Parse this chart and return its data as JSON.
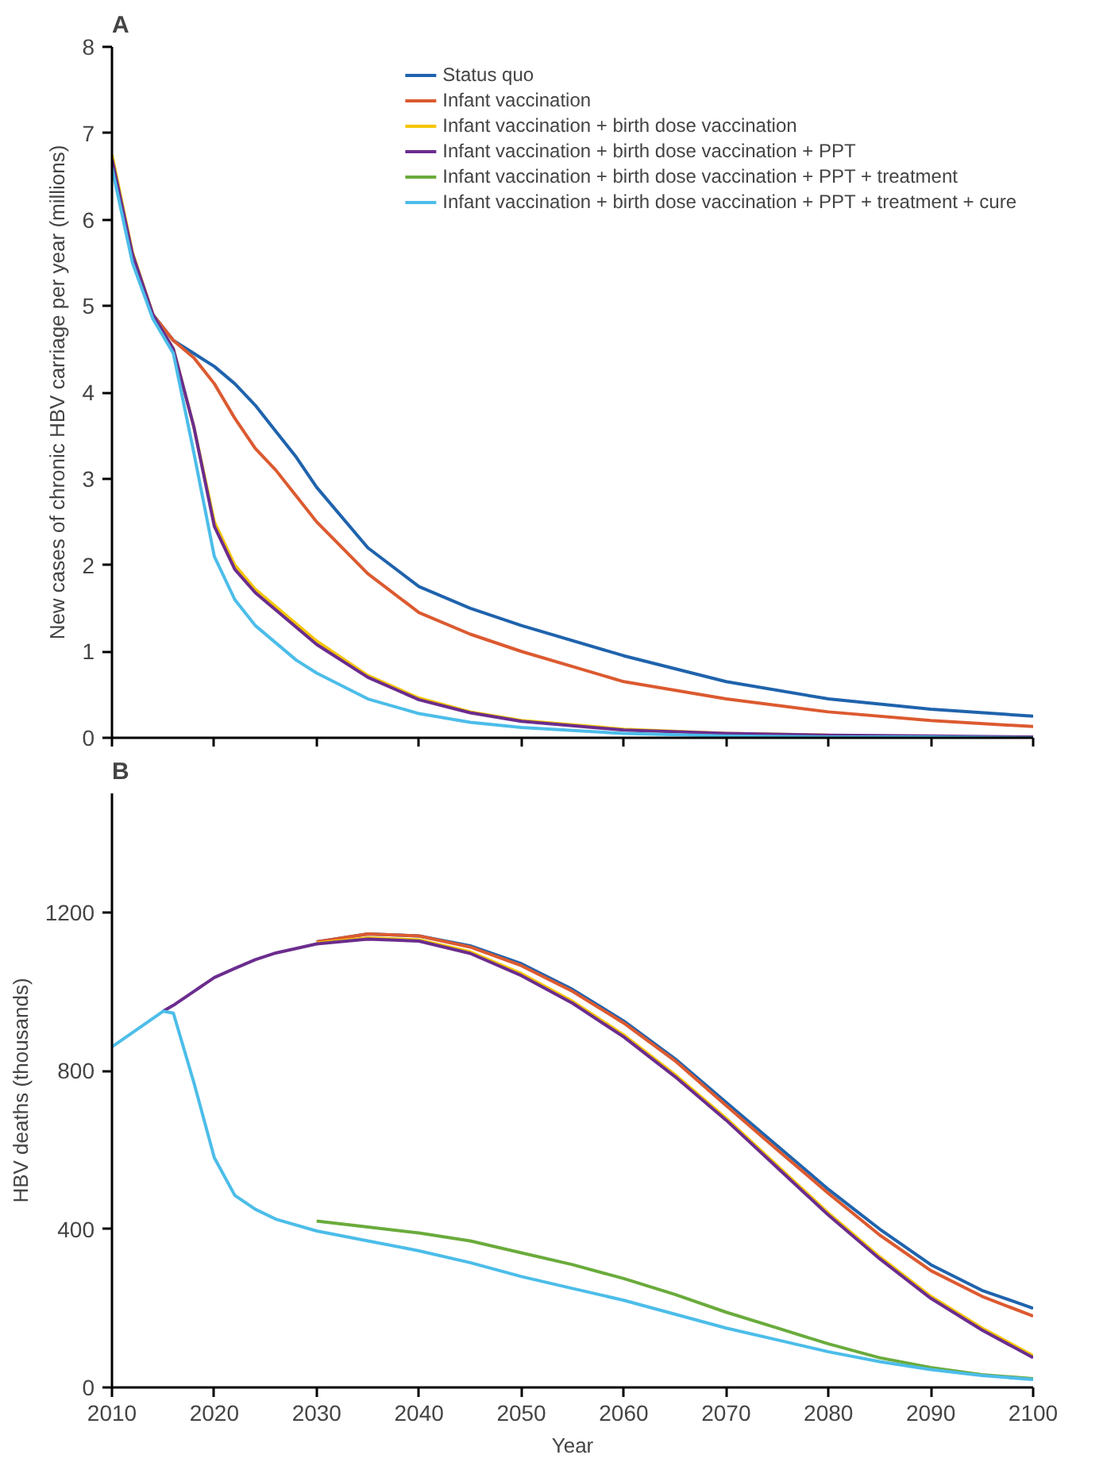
{
  "chart_data": [
    {
      "type": "line",
      "title": "A",
      "ylabel": "New cases of chronic HBV carriage per year (millions)",
      "x": [
        2010,
        2012,
        2014,
        2016,
        2018,
        2020,
        2022,
        2024,
        2026,
        2028,
        2030,
        2035,
        2040,
        2045,
        2050,
        2060,
        2070,
        2080,
        2090,
        2100
      ],
      "xlim": [
        2010,
        2100
      ],
      "xticks": [
        {
          "value": 2010,
          "label": null
        },
        {
          "value": 2020,
          "label": null
        },
        {
          "value": 2030,
          "label": null
        },
        {
          "value": 2040,
          "label": null
        },
        {
          "value": 2050,
          "label": null
        },
        {
          "value": 2060,
          "label": null
        },
        {
          "value": 2070,
          "label": null
        },
        {
          "value": 2080,
          "label": null
        },
        {
          "value": 2090,
          "label": null
        },
        {
          "value": 2100,
          "label": null
        }
      ],
      "ylim": [
        0,
        8
      ],
      "yticks": [
        0,
        1,
        2,
        3,
        4,
        5,
        6,
        7,
        8
      ],
      "tick_labels": "y",
      "grid": false,
      "legend": "top right",
      "series": [
        {
          "name": "Status quo",
          "color": "#1f63ad",
          "values": [
            6.7,
            5.6,
            4.9,
            4.6,
            4.45,
            4.3,
            4.1,
            3.85,
            3.55,
            3.25,
            2.9,
            2.2,
            1.75,
            1.5,
            1.3,
            0.95,
            0.65,
            0.45,
            0.33,
            0.25
          ]
        },
        {
          "name": "Infant vaccination",
          "color": "#dc5a30",
          "values": [
            6.7,
            5.6,
            4.9,
            4.6,
            4.4,
            4.1,
            3.7,
            3.35,
            3.1,
            2.8,
            2.5,
            1.9,
            1.45,
            1.2,
            1.0,
            0.65,
            0.45,
            0.3,
            0.2,
            0.13
          ]
        },
        {
          "name": "Infant vaccination + birth dose vaccination",
          "color": "#f5c500",
          "values": [
            6.75,
            5.62,
            4.9,
            4.5,
            3.6,
            2.5,
            2.0,
            1.72,
            1.52,
            1.32,
            1.12,
            0.72,
            0.46,
            0.3,
            0.2,
            0.1,
            0.05,
            0.03,
            null,
            null
          ]
        },
        {
          "name": "Infant vaccination + birth dose vaccination + PPT",
          "color": "#6b2d8e",
          "values": [
            6.7,
            5.6,
            4.9,
            4.5,
            3.6,
            2.45,
            1.95,
            1.68,
            1.48,
            1.28,
            1.08,
            0.7,
            0.44,
            0.29,
            0.19,
            0.09,
            0.05,
            0.03,
            0.02,
            0.01
          ]
        },
        {
          "name": "Infant vaccination + birth dose vaccination + PPT + treatment",
          "color": "#6aab3c",
          "values": [
            null,
            null,
            null,
            null,
            null,
            null,
            null,
            null,
            null,
            null,
            null,
            null,
            null,
            null,
            null,
            null,
            null,
            null,
            null,
            null
          ]
        },
        {
          "name": "Infant vaccination + birth dose vaccination + PPT + treatment + cure",
          "color": "#4cbde9",
          "values": [
            6.6,
            5.5,
            4.85,
            4.45,
            3.3,
            2.1,
            1.6,
            1.3,
            1.1,
            0.9,
            0.75,
            0.45,
            0.28,
            0.18,
            0.12,
            0.05,
            0.02,
            0.01,
            0.01,
            0.0
          ]
        }
      ]
    },
    {
      "type": "line",
      "title": "B",
      "xlabel": "Year",
      "ylabel": "HBV deaths (thousands)",
      "x": [
        2010,
        2015,
        2016,
        2018,
        2020,
        2022,
        2024,
        2026,
        2030,
        2035,
        2040,
        2045,
        2050,
        2055,
        2060,
        2065,
        2070,
        2075,
        2080,
        2085,
        2090,
        2095,
        2100
      ],
      "xlim": [
        2010,
        2100
      ],
      "xticks": [
        2010,
        2020,
        2030,
        2040,
        2050,
        2060,
        2070,
        2080,
        2090,
        2100
      ],
      "ylim": [
        0,
        1500
      ],
      "yticks": [
        0,
        400,
        800,
        1200
      ],
      "grid": false,
      "series": [
        {
          "color": "#1f63ad",
          "values": [
            null,
            null,
            null,
            null,
            null,
            null,
            null,
            null,
            1125,
            1145,
            1140,
            1115,
            1070,
            1005,
            925,
            830,
            720,
            610,
            500,
            400,
            310,
            245,
            200
          ]
        },
        {
          "color": "#dc5a30",
          "values": [
            null,
            null,
            null,
            null,
            null,
            null,
            null,
            null,
            1125,
            1145,
            1140,
            1112,
            1065,
            1000,
            920,
            825,
            712,
            600,
            490,
            385,
            295,
            230,
            180
          ]
        },
        {
          "color": "#f5c500",
          "values": [
            null,
            null,
            null,
            null,
            null,
            null,
            null,
            null,
            1122,
            1135,
            1130,
            1100,
            1045,
            975,
            890,
            790,
            680,
            560,
            440,
            330,
            230,
            150,
            80
          ]
        },
        {
          "color": "#6b2d8e",
          "values": [
            null,
            950,
            965,
            1000,
            1035,
            1058,
            1080,
            1097,
            1120,
            1132,
            1127,
            1096,
            1040,
            970,
            885,
            785,
            675,
            555,
            435,
            325,
            225,
            145,
            75
          ]
        },
        {
          "color": "#6aab3c",
          "values": [
            null,
            null,
            null,
            null,
            null,
            null,
            null,
            null,
            420,
            405,
            390,
            370,
            340,
            310,
            275,
            235,
            190,
            150,
            110,
            75,
            50,
            32,
            22
          ]
        },
        {
          "color": "#4cbde9",
          "values": [
            860,
            950,
            945,
            770,
            580,
            485,
            450,
            425,
            395,
            370,
            345,
            315,
            280,
            250,
            220,
            185,
            150,
            120,
            90,
            65,
            45,
            30,
            20
          ]
        }
      ]
    }
  ]
}
